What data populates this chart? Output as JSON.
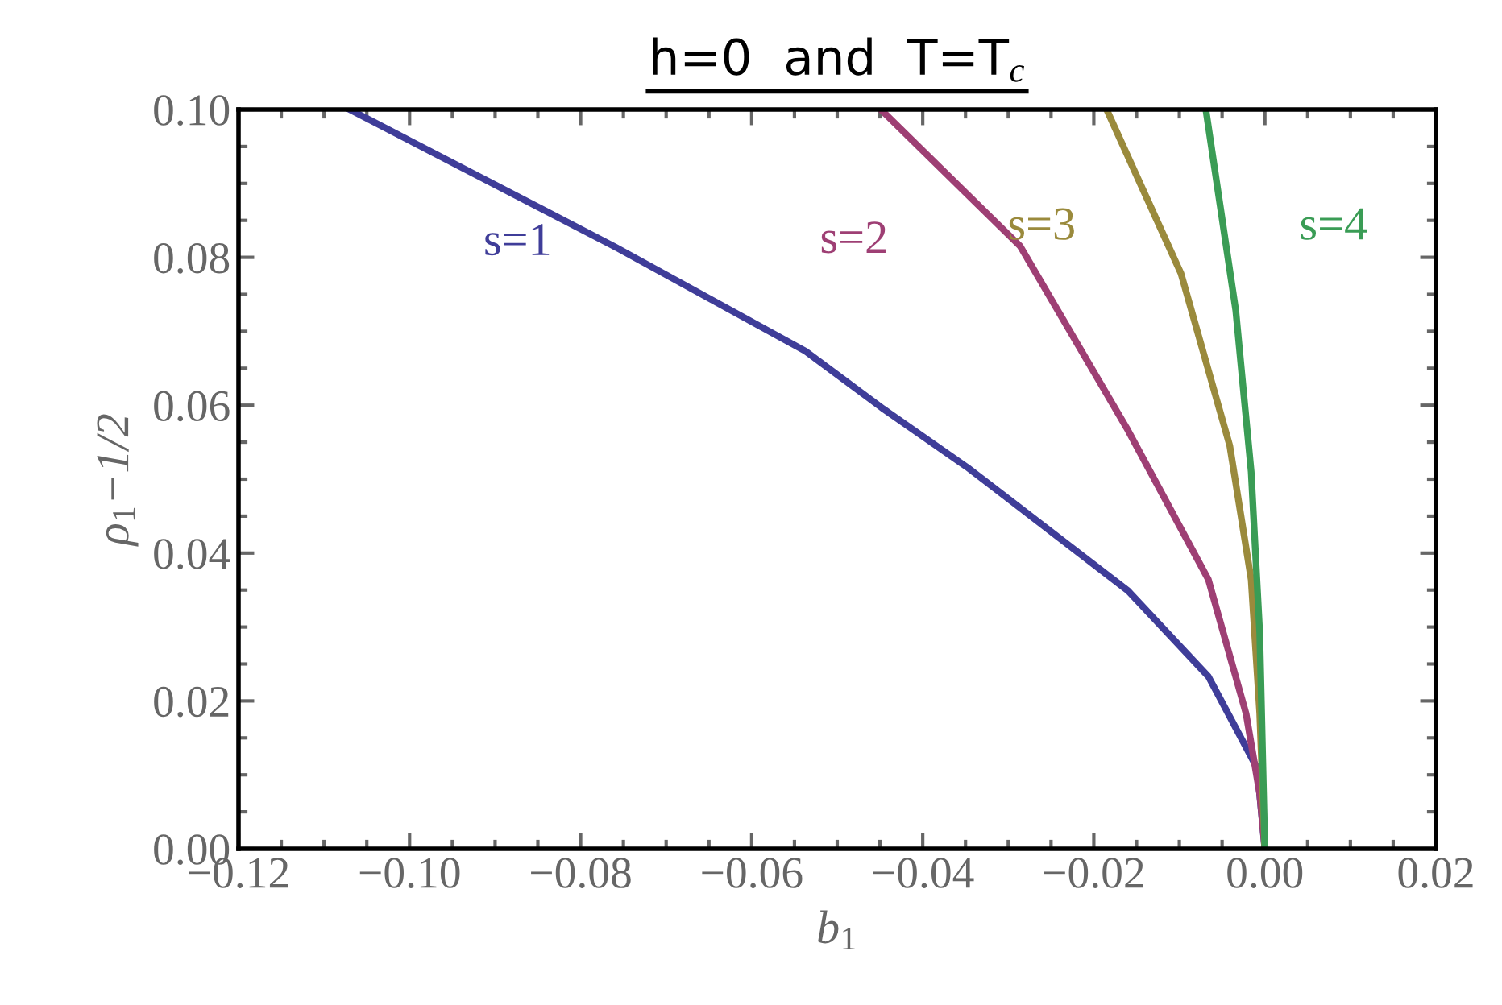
{
  "chart_data": {
    "type": "line",
    "title": "h=0  and  T=T$_{c}$",
    "xlabel": "b$_{1}$",
    "ylabel": "ρ$_{1}$−1/2",
    "xlim": [
      -0.12,
      0.02
    ],
    "ylim": [
      0.0,
      0.1
    ],
    "xticks": [
      {
        "value": -0.12,
        "label": "−0.12"
      },
      {
        "value": -0.1,
        "label": "−0.10"
      },
      {
        "value": -0.08,
        "label": "−0.08"
      },
      {
        "value": -0.06,
        "label": "−0.06"
      },
      {
        "value": -0.04,
        "label": "−0.04"
      },
      {
        "value": -0.02,
        "label": "−0.02"
      },
      {
        "value": 0.0,
        "label": "0.00"
      },
      {
        "value": 0.02,
        "label": "0.02"
      }
    ],
    "yticks": [
      {
        "value": 0.0,
        "label": "0.00"
      },
      {
        "value": 0.02,
        "label": "0.02"
      },
      {
        "value": 0.04,
        "label": "0.04"
      },
      {
        "value": 0.06,
        "label": "0.06"
      },
      {
        "value": 0.08,
        "label": "0.08"
      },
      {
        "value": 0.1,
        "label": "0.10"
      }
    ],
    "grid": false,
    "legend": false,
    "marker": "none",
    "line_style": "solid",
    "series": [
      {
        "name": "s=1",
        "color": "#3f3d99",
        "x": [
          -0.107,
          -0.0761,
          -0.0537,
          -0.0446,
          -0.0348,
          -0.016,
          -0.0066,
          -0.0009,
          0.0
        ],
        "values": [
          0.1,
          0.0815,
          0.0673,
          0.0595,
          0.0516,
          0.0349,
          0.0233,
          0.0109,
          0.0
        ]
      },
      {
        "name": "s=2",
        "color": "#9e3f74",
        "x": [
          -0.0449,
          -0.0286,
          -0.016,
          -0.0066,
          -0.0022,
          -0.0006,
          0.0
        ],
        "values": [
          0.1,
          0.0815,
          0.0566,
          0.0364,
          0.0183,
          0.0074,
          0.0
        ]
      },
      {
        "name": "s=3",
        "color": "#9a8a3c",
        "x": [
          -0.0185,
          -0.0098,
          -0.0041,
          -0.0016,
          -0.0006,
          0.0
        ],
        "values": [
          0.1,
          0.0778,
          0.0545,
          0.0364,
          0.0183,
          0.0
        ]
      },
      {
        "name": "s=4",
        "color": "#3a9c55",
        "x": [
          -0.0069,
          -0.0034,
          -0.0016,
          -0.0006,
          0.0
        ],
        "values": [
          0.1,
          0.0728,
          0.051,
          0.0292,
          0.0
        ]
      }
    ]
  }
}
